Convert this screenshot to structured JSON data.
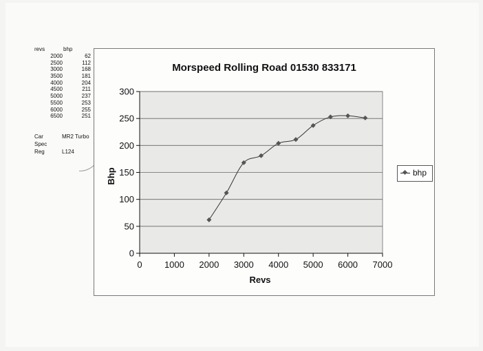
{
  "table": {
    "header_revs": "revs",
    "header_bhp": "bhp",
    "rows": [
      {
        "revs": "2000",
        "bhp": "62"
      },
      {
        "revs": "2500",
        "bhp": "112"
      },
      {
        "revs": "3000",
        "bhp": "168"
      },
      {
        "revs": "3500",
        "bhp": "181"
      },
      {
        "revs": "4000",
        "bhp": "204"
      },
      {
        "revs": "4500",
        "bhp": "211"
      },
      {
        "revs": "5000",
        "bhp": "237"
      },
      {
        "revs": "5500",
        "bhp": "253"
      },
      {
        "revs": "6000",
        "bhp": "255"
      },
      {
        "revs": "6500",
        "bhp": "251"
      }
    ]
  },
  "meta": {
    "car_label": "Car",
    "car_value": "MR2 Turbo",
    "spec_label": "Spec",
    "spec_value": "",
    "reg_label": "Reg",
    "reg_value": "L124"
  },
  "chart_data": {
    "type": "line",
    "title": "Morspeed Rolling Road 01530 833171",
    "xlabel": "Revs",
    "ylabel": "Bhp",
    "x": [
      2000,
      2500,
      3000,
      3500,
      4000,
      4500,
      5000,
      5500,
      6000,
      6500
    ],
    "series": [
      {
        "name": "bhp",
        "values": [
          62,
          112,
          168,
          181,
          204,
          211,
          237,
          253,
          255,
          251
        ]
      }
    ],
    "xlim": [
      0,
      7000
    ],
    "ylim": [
      0,
      300
    ],
    "xticks": [
      "0",
      "1000",
      "2000",
      "3000",
      "4000",
      "5000",
      "6000",
      "7000"
    ],
    "yticks": [
      "0",
      "50",
      "100",
      "150",
      "200",
      "250",
      "300"
    ],
    "grid": "horizontal",
    "legend": "right",
    "colors": {
      "plot_bg": "#e9e9e7",
      "line": "#333333",
      "marker": "#555555"
    }
  }
}
